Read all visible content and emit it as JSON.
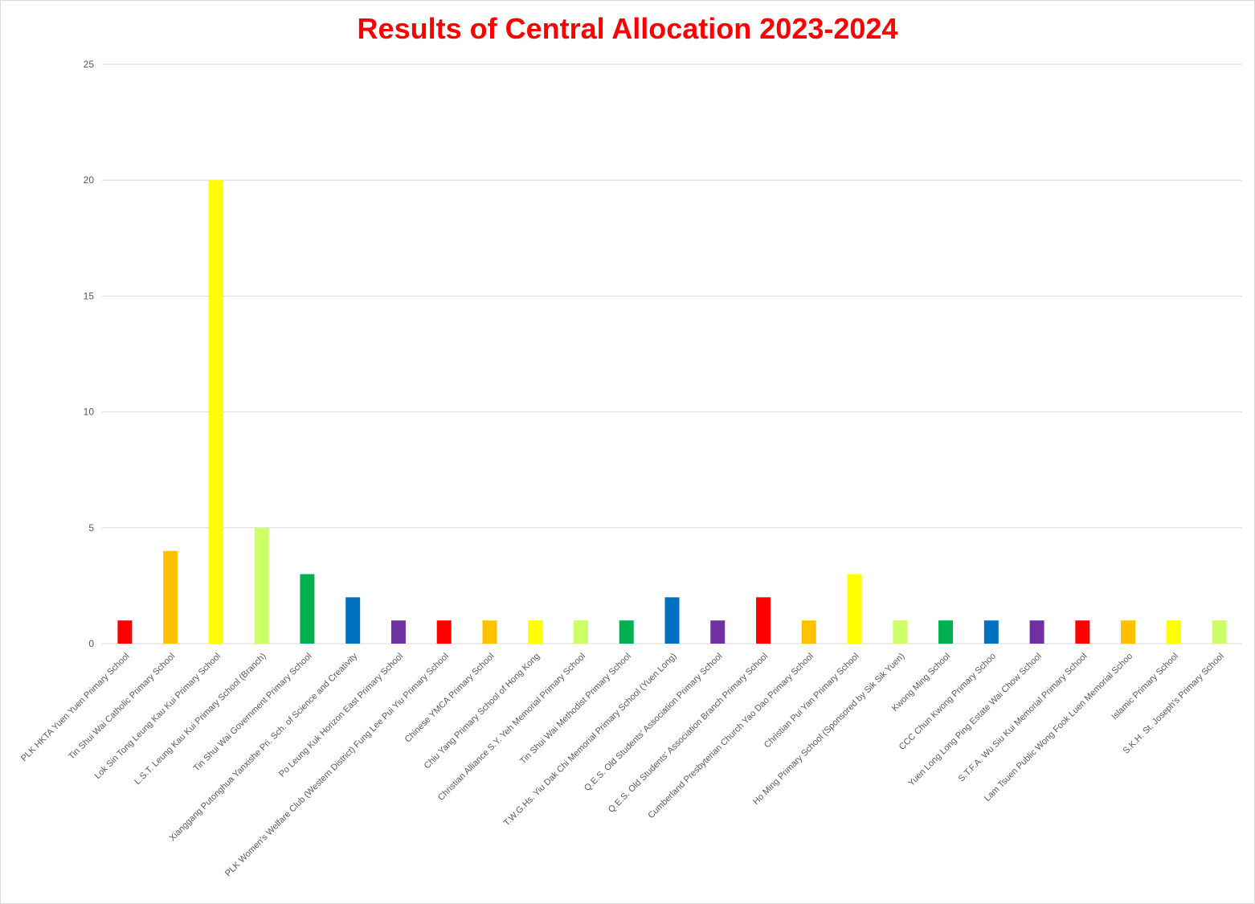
{
  "chart_data": {
    "type": "bar",
    "title": "Results of Central Allocation 2023-2024",
    "xlabel": "",
    "ylabel": "",
    "ylim": [
      0,
      25
    ],
    "yticks": [
      0,
      5,
      10,
      15,
      20,
      25
    ],
    "grid": true,
    "legend": "none",
    "categories": [
      "PLK HKTA Yuen Yuen Primary School",
      "Tin Shui Wai Catholic Primary School",
      "Lok Sin Tong Leung Kau Kui Primary School",
      "L.S.T. Leung Kau Kui Primary School (Branch)",
      "Tin Shui Wai Government Primary School",
      "Xianggang Putonghua Yanxishe Pri. Sch. of Science and Creativity",
      "Po Leung Kuk Horizon East Primary School",
      "PLK Women's Welfare Club (Western District) Fung Lee Pui Yiu Primary School",
      "Chinese YMCA Primary School",
      "Chiu Yang Primary School of Hong Kong",
      "Christian Alliance S.Y. Yeh Memorial Primary School",
      "Tin Shui Wai Methodist Primary School",
      "T.W.G.Hs. Yiu Dak Chi Memorial Primary School (Yuen Long)",
      "Q.E.S. Old Students' Association Primary School",
      "Q.E.S. Old Students' Association Branch Primary School",
      "Cumberland Presbyterian Church Yao Dao Primary School",
      "Christian Pui Yan Primary School",
      "Ho Ming Primary School (Sponsored by Sik Sik Yuen)",
      "Kwong Ming School",
      "CCC Chun Kwong Primary Schoo",
      "Yuen Long Long Ping Estate Wai Chow School",
      "S.T.F.A. Wu Siu Kui Memorial Primary School",
      "Lam Tsuen Public Wong Fook Luen Memorial Schoo",
      "Islamic Primary School",
      "S.K.H. St. Joseph's Primary School"
    ],
    "values": [
      1,
      4,
      20,
      5,
      3,
      2,
      1,
      1,
      1,
      1,
      1,
      1,
      2,
      1,
      2,
      1,
      3,
      1,
      1,
      1,
      1,
      1,
      1,
      1,
      1
    ],
    "colors": [
      "#ff0000",
      "#ffc000",
      "#ffff00",
      "#ccff66",
      "#00b050",
      "#0070c0",
      "#7030a0",
      "#ff0000",
      "#ffc000",
      "#ffff00",
      "#ccff66",
      "#00b050",
      "#0070c0",
      "#7030a0",
      "#ff0000",
      "#ffc000",
      "#ffff00",
      "#ccff66",
      "#00b050",
      "#0070c0",
      "#7030a0",
      "#ff0000",
      "#ffc000",
      "#ffff00",
      "#ccff66"
    ],
    "gridline_color": "#d9d9d9",
    "axis_color": "#d9d9d9",
    "title_color": "#ff0000"
  }
}
